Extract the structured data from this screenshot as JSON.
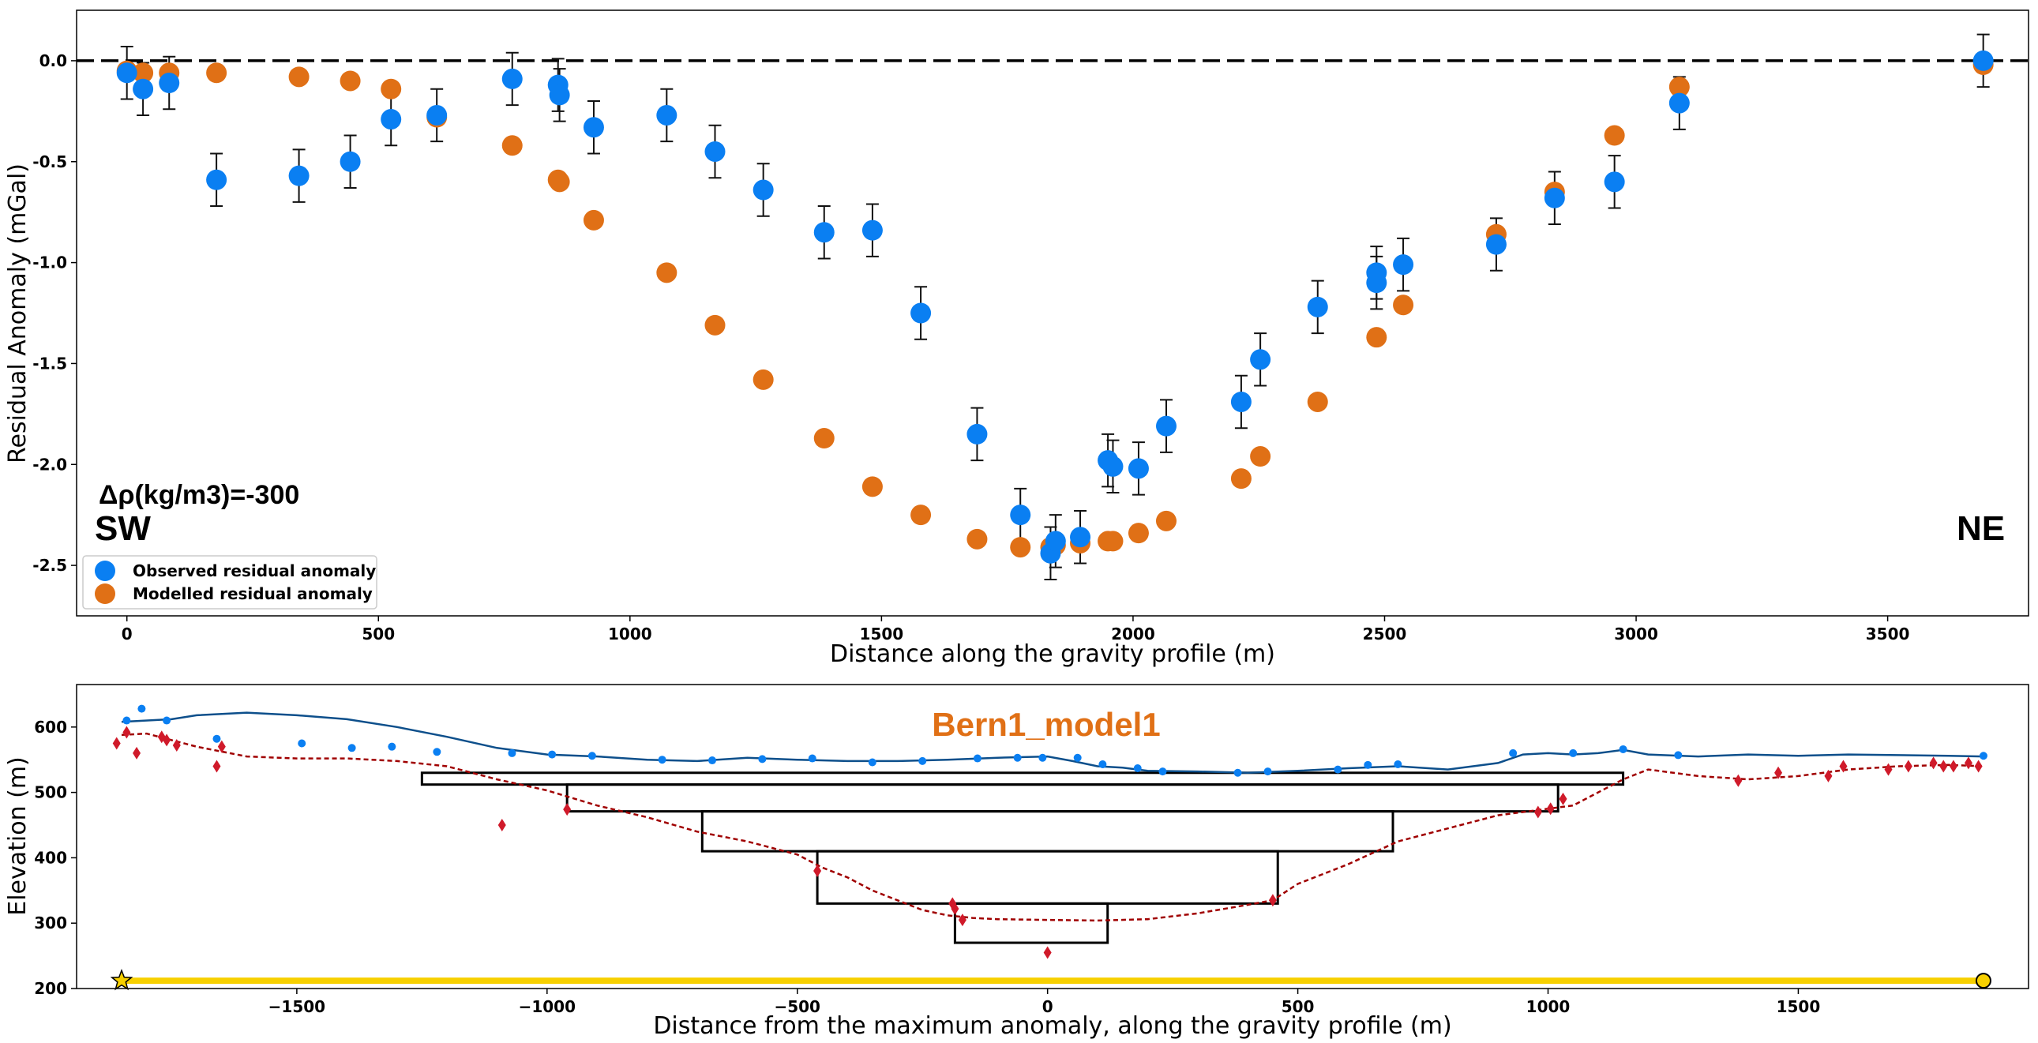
{
  "colors": {
    "observed": "#0a7ff2",
    "modelled": "#e07016",
    "topography": "#0d4f8b",
    "bedrock": "#a00000",
    "boreholes": "#d01a2a",
    "profile_line": "#f7d000",
    "model_title": "#e07016"
  },
  "chart_data": [
    {
      "type": "scatter",
      "title": "",
      "xlabel": "Distance along the gravity profile (m)",
      "ylabel": "Residual Anomaly (mGal)",
      "xlim": [
        -100,
        3780
      ],
      "ylim": [
        -2.75,
        0.25
      ],
      "xticks": [
        0,
        500,
        1000,
        1500,
        2000,
        2500,
        3000,
        3500
      ],
      "yticks": [
        0.0,
        -0.5,
        -1.0,
        -1.5,
        -2.0,
        -2.5
      ],
      "ytick_labels": [
        "0.0",
        "-0.5",
        "-1.0",
        "-1.5",
        "-2.0",
        "-2.5"
      ],
      "grid": false,
      "reference_line": 0.0,
      "legend": {
        "placement": "lower-left",
        "entries": [
          "Observed residual anomaly",
          "Modelled residual anomaly"
        ]
      },
      "annotations": {
        "density": "Δρ(kg/m3)=-300",
        "left": "SW",
        "right": "NE"
      },
      "series": [
        {
          "name": "Observed residual anomaly",
          "error": 0.13,
          "points": [
            [
              0,
              -0.06
            ],
            [
              32,
              -0.14
            ],
            [
              84,
              -0.11
            ],
            [
              178,
              -0.59
            ],
            [
              342,
              -0.57
            ],
            [
              444,
              -0.5
            ],
            [
              525,
              -0.29
            ],
            [
              616,
              -0.27
            ],
            [
              766,
              -0.09
            ],
            [
              857,
              -0.12
            ],
            [
              860,
              -0.17
            ],
            [
              928,
              -0.33
            ],
            [
              1073,
              -0.27
            ],
            [
              1169,
              -0.45
            ],
            [
              1265,
              -0.64
            ],
            [
              1386,
              -0.85
            ],
            [
              1482,
              -0.84
            ],
            [
              1578,
              -1.25
            ],
            [
              1690,
              -1.85
            ],
            [
              1776,
              -2.25
            ],
            [
              1836,
              -2.44
            ],
            [
              1846,
              -2.38
            ],
            [
              1895,
              -2.36
            ],
            [
              1950,
              -1.98
            ],
            [
              1960,
              -2.01
            ],
            [
              2011,
              -2.02
            ],
            [
              2066,
              -1.81
            ],
            [
              2215,
              -1.69
            ],
            [
              2253,
              -1.48
            ],
            [
              2367,
              -1.22
            ],
            [
              2484,
              -1.05
            ],
            [
              2484,
              -1.1
            ],
            [
              2537,
              -1.01
            ],
            [
              2722,
              -0.91
            ],
            [
              2838,
              -0.68
            ],
            [
              2957,
              -0.6
            ],
            [
              3086,
              -0.21
            ],
            [
              3690,
              0.0
            ]
          ]
        },
        {
          "name": "Modelled residual anomaly",
          "points": [
            [
              0,
              -0.05
            ],
            [
              32,
              -0.06
            ],
            [
              84,
              -0.06
            ],
            [
              178,
              -0.06
            ],
            [
              342,
              -0.08
            ],
            [
              444,
              -0.1
            ],
            [
              525,
              -0.14
            ],
            [
              616,
              -0.28
            ],
            [
              766,
              -0.42
            ],
            [
              857,
              -0.59
            ],
            [
              860,
              -0.6
            ],
            [
              928,
              -0.79
            ],
            [
              1073,
              -1.05
            ],
            [
              1169,
              -1.31
            ],
            [
              1265,
              -1.58
            ],
            [
              1386,
              -1.87
            ],
            [
              1482,
              -2.11
            ],
            [
              1578,
              -2.25
            ],
            [
              1690,
              -2.37
            ],
            [
              1776,
              -2.41
            ],
            [
              1836,
              -2.41
            ],
            [
              1846,
              -2.4
            ],
            [
              1895,
              -2.39
            ],
            [
              1950,
              -2.38
            ],
            [
              1960,
              -2.38
            ],
            [
              2011,
              -2.34
            ],
            [
              2066,
              -2.28
            ],
            [
              2215,
              -2.07
            ],
            [
              2253,
              -1.96
            ],
            [
              2367,
              -1.69
            ],
            [
              2484,
              -1.37
            ],
            [
              2537,
              -1.21
            ],
            [
              2722,
              -0.86
            ],
            [
              2838,
              -0.65
            ],
            [
              2957,
              -0.37
            ],
            [
              3086,
              -0.13
            ],
            [
              3690,
              -0.02
            ]
          ]
        }
      ]
    },
    {
      "type": "line",
      "title": "Bern1_model1",
      "xlabel": "Distance from the maximum anomaly, along the gravity profile (m)",
      "ylabel": "Elevation (m)",
      "xlim": [
        -1940,
        1960
      ],
      "ylim": [
        200,
        665
      ],
      "xticks": [
        -1500,
        -1000,
        -500,
        0,
        500,
        1000,
        1500
      ],
      "xtick_labels": [
        "−1500",
        "−1000",
        "−500",
        "0",
        "500",
        "1000",
        "1500"
      ],
      "yticks": [
        200,
        300,
        400,
        500,
        600
      ],
      "grid": false,
      "topography": [
        [
          -1850,
          608
        ],
        [
          -1750,
          612
        ],
        [
          -1700,
          618
        ],
        [
          -1600,
          622
        ],
        [
          -1500,
          618
        ],
        [
          -1400,
          612
        ],
        [
          -1300,
          600
        ],
        [
          -1200,
          585
        ],
        [
          -1100,
          568
        ],
        [
          -1000,
          558
        ],
        [
          -900,
          555
        ],
        [
          -800,
          550
        ],
        [
          -700,
          548
        ],
        [
          -600,
          553
        ],
        [
          -500,
          550
        ],
        [
          -400,
          548
        ],
        [
          -300,
          548
        ],
        [
          -200,
          550
        ],
        [
          -100,
          553
        ],
        [
          0,
          555
        ],
        [
          50,
          548
        ],
        [
          100,
          540
        ],
        [
          150,
          538
        ],
        [
          200,
          533
        ],
        [
          300,
          532
        ],
        [
          400,
          530
        ],
        [
          500,
          533
        ],
        [
          600,
          537
        ],
        [
          700,
          540
        ],
        [
          800,
          535
        ],
        [
          900,
          545
        ],
        [
          950,
          558
        ],
        [
          1000,
          560
        ],
        [
          1050,
          558
        ],
        [
          1100,
          560
        ],
        [
          1150,
          565
        ],
        [
          1200,
          558
        ],
        [
          1300,
          555
        ],
        [
          1400,
          558
        ],
        [
          1500,
          556
        ],
        [
          1600,
          558
        ],
        [
          1700,
          557
        ],
        [
          1800,
          556
        ],
        [
          1870,
          555
        ]
      ],
      "bedrock": [
        [
          -1850,
          588
        ],
        [
          -1800,
          590
        ],
        [
          -1700,
          570
        ],
        [
          -1600,
          555
        ],
        [
          -1500,
          552
        ],
        [
          -1400,
          552
        ],
        [
          -1300,
          548
        ],
        [
          -1200,
          540
        ],
        [
          -1100,
          520
        ],
        [
          -1000,
          503
        ],
        [
          -900,
          480
        ],
        [
          -800,
          462
        ],
        [
          -700,
          440
        ],
        [
          -600,
          425
        ],
        [
          -500,
          405
        ],
        [
          -450,
          385
        ],
        [
          -400,
          370
        ],
        [
          -350,
          350
        ],
        [
          -300,
          335
        ],
        [
          -250,
          320
        ],
        [
          -200,
          312
        ],
        [
          -150,
          308
        ],
        [
          -100,
          306
        ],
        [
          0,
          305
        ],
        [
          100,
          304
        ],
        [
          200,
          306
        ],
        [
          300,
          315
        ],
        [
          400,
          328
        ],
        [
          450,
          335
        ],
        [
          500,
          360
        ],
        [
          600,
          390
        ],
        [
          700,
          425
        ],
        [
          800,
          445
        ],
        [
          900,
          465
        ],
        [
          1000,
          475
        ],
        [
          1050,
          480
        ],
        [
          1100,
          500
        ],
        [
          1150,
          520
        ],
        [
          1200,
          535
        ],
        [
          1300,
          525
        ],
        [
          1400,
          520
        ],
        [
          1500,
          525
        ],
        [
          1600,
          535
        ],
        [
          1700,
          540
        ],
        [
          1800,
          542
        ],
        [
          1870,
          540
        ]
      ],
      "stations": [
        [
          -1840,
          610
        ],
        [
          -1810,
          628
        ],
        [
          -1760,
          610
        ],
        [
          -1660,
          582
        ],
        [
          -1490,
          575
        ],
        [
          -1390,
          568
        ],
        [
          -1310,
          570
        ],
        [
          -1220,
          562
        ],
        [
          -1070,
          560
        ],
        [
          -990,
          558
        ],
        [
          -910,
          556
        ],
        [
          -770,
          550
        ],
        [
          -670,
          549
        ],
        [
          -570,
          551
        ],
        [
          -470,
          552
        ],
        [
          -350,
          546
        ],
        [
          -250,
          548
        ],
        [
          -140,
          552
        ],
        [
          -60,
          553
        ],
        [
          -10,
          553
        ],
        [
          60,
          553
        ],
        [
          110,
          543
        ],
        [
          180,
          537
        ],
        [
          230,
          532
        ],
        [
          380,
          530
        ],
        [
          440,
          532
        ],
        [
          580,
          535
        ],
        [
          640,
          542
        ],
        [
          700,
          543
        ],
        [
          930,
          560
        ],
        [
          1050,
          560
        ],
        [
          1150,
          566
        ],
        [
          1260,
          557
        ],
        [
          1870,
          556
        ]
      ],
      "boreholes": [
        [
          -1860,
          575
        ],
        [
          -1840,
          592
        ],
        [
          -1820,
          560
        ],
        [
          -1770,
          585
        ],
        [
          -1760,
          580
        ],
        [
          -1740,
          572
        ],
        [
          -1660,
          540
        ],
        [
          -1650,
          570
        ],
        [
          -1090,
          450
        ],
        [
          -960,
          474
        ],
        [
          -460,
          380
        ],
        [
          -190,
          330
        ],
        [
          -185,
          322
        ],
        [
          -170,
          305
        ],
        [
          0,
          255
        ],
        [
          450,
          335
        ],
        [
          980,
          470
        ],
        [
          1005,
          475
        ],
        [
          1030,
          490
        ],
        [
          1380,
          518
        ],
        [
          1460,
          530
        ],
        [
          1560,
          525
        ],
        [
          1590,
          540
        ],
        [
          1680,
          535
        ],
        [
          1720,
          540
        ],
        [
          1770,
          545
        ],
        [
          1790,
          540
        ],
        [
          1810,
          540
        ],
        [
          1840,
          545
        ],
        [
          1860,
          540
        ]
      ],
      "model_blocks": [
        {
          "x": [
            -1250,
            1150
          ],
          "top": 530,
          "bottom": 512
        },
        {
          "x": [
            -960,
            1020
          ],
          "top": 512,
          "bottom": 471
        },
        {
          "x": [
            -690,
            690
          ],
          "top": 471,
          "bottom": 410
        },
        {
          "x": [
            -460,
            460
          ],
          "top": 410,
          "bottom": 330
        },
        {
          "x": [
            -185,
            120
          ],
          "top": 330,
          "bottom": 270
        }
      ],
      "profile": {
        "x": [
          -1850,
          1870
        ],
        "elevation": 212
      }
    }
  ]
}
